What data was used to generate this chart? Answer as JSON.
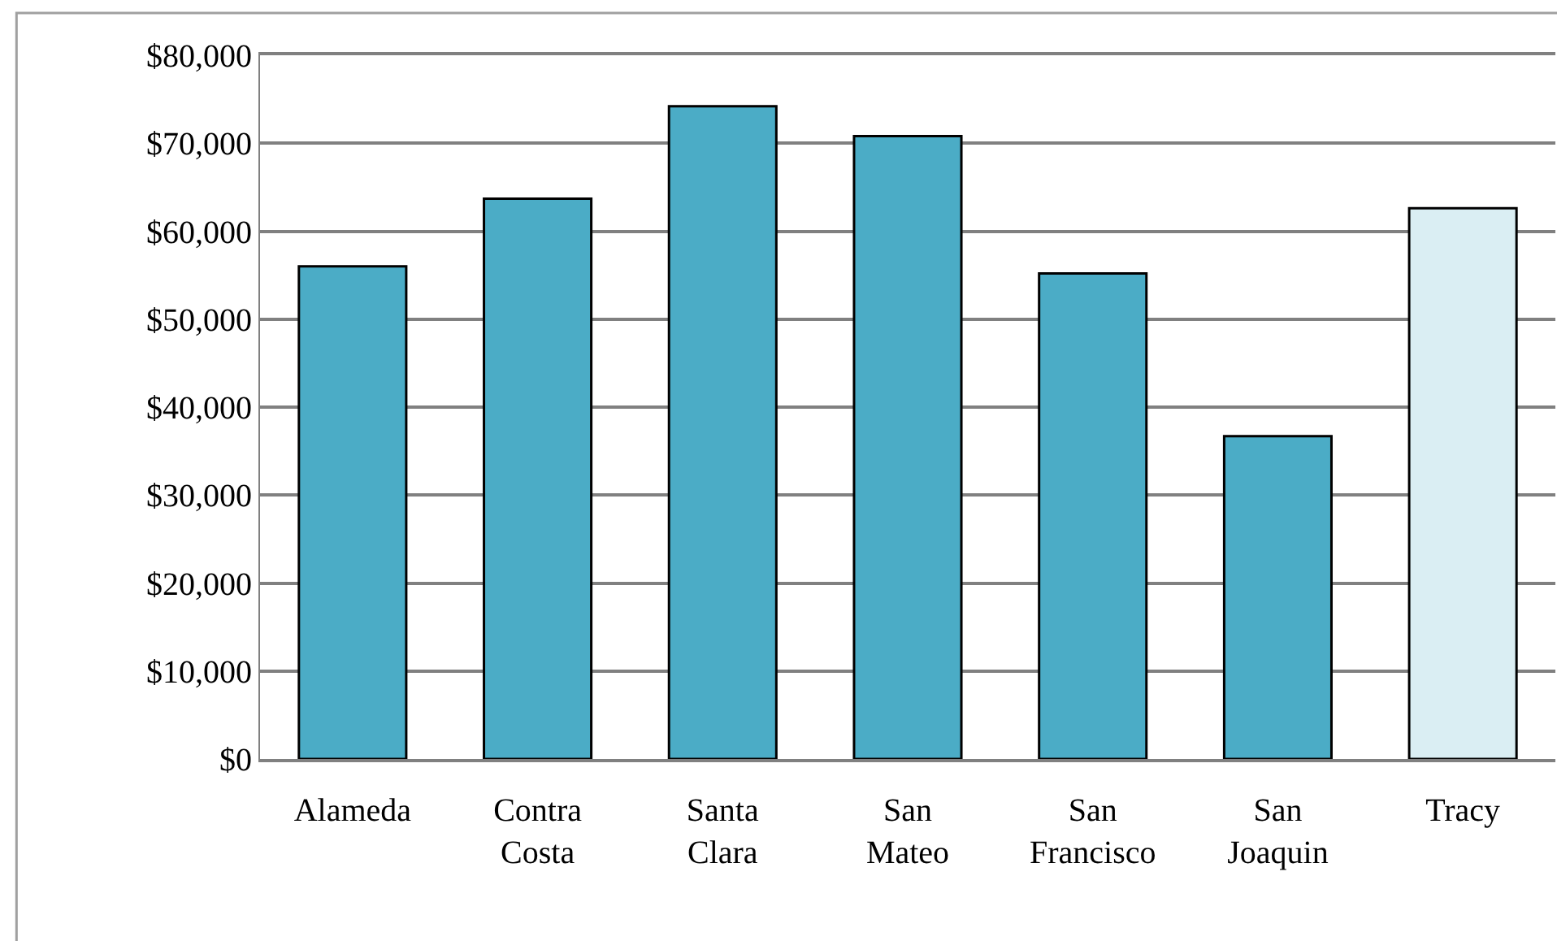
{
  "chart_data": {
    "type": "bar",
    "categories": [
      "Alameda",
      "Contra Costa",
      "Santa Clara",
      "San Mateo",
      "San Francisco",
      "San Joaquin",
      "Tracy"
    ],
    "values": [
      56000,
      63700,
      74200,
      70800,
      55200,
      36700,
      62600
    ],
    "colors": [
      "#4bacc6",
      "#4bacc6",
      "#4bacc6",
      "#4bacc6",
      "#4bacc6",
      "#4bacc6",
      "#daeef3"
    ],
    "ylim": [
      0,
      80000
    ],
    "yticks": [
      {
        "value": 0,
        "label": "$0"
      },
      {
        "value": 10000,
        "label": "$10,000"
      },
      {
        "value": 20000,
        "label": "$20,000"
      },
      {
        "value": 30000,
        "label": "$30,000"
      },
      {
        "value": 40000,
        "label": "$40,000"
      },
      {
        "value": 50000,
        "label": "$50,000"
      },
      {
        "value": 60000,
        "label": "$60,000"
      },
      {
        "value": 70000,
        "label": "$70,000"
      },
      {
        "value": 80000,
        "label": "$80,000"
      }
    ],
    "grid": "y"
  }
}
